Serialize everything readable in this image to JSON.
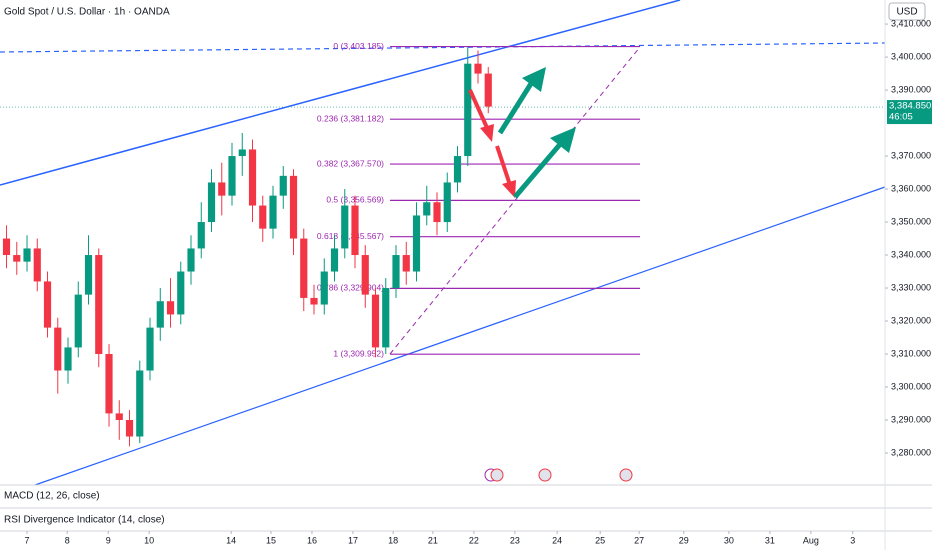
{
  "header": {
    "title": "Gold Spot / U.S. Dollar · 1h · OANDA",
    "currency": "USD"
  },
  "chart_data": {
    "type": "candlestick",
    "x": [
      -0.5,
      -0.25,
      0,
      0.25,
      0.5,
      0.75,
      1.0,
      1.25,
      1.5,
      1.75,
      2.0,
      2.25,
      2.5,
      2.75,
      3.0,
      3.25,
      3.5,
      3.75,
      4.0,
      4.25,
      4.5,
      4.75,
      5.0,
      5.25,
      5.5,
      5.75,
      6.0,
      6.25,
      6.5,
      6.75,
      7.0,
      7.25,
      7.5,
      7.75,
      8.0,
      8.25,
      8.5,
      8.75,
      9.0,
      9.25,
      9.5,
      9.75,
      10.0,
      10.25,
      10.5,
      10.75,
      11.0,
      11.25
    ],
    "open": [
      3345,
      3340,
      3338,
      3342,
      3332,
      3318,
      3305,
      3312,
      3328,
      3340,
      3310,
      3292,
      3290,
      3285,
      3305,
      3318,
      3326,
      3322,
      3335,
      3342,
      3350,
      3362,
      3358,
      3370,
      3372,
      3355,
      3348,
      3358,
      3364,
      3345,
      3327,
      3325,
      3335,
      3342,
      3355,
      3340,
      3328,
      3312,
      3330,
      3340,
      3335,
      3352,
      3356,
      3350,
      3362,
      3370,
      3398,
      3395
    ],
    "high": [
      3349,
      3344,
      3346,
      3345,
      3335,
      3321,
      3315,
      3332,
      3346,
      3342,
      3313,
      3296,
      3293,
      3308,
      3321,
      3330,
      3333,
      3338,
      3346,
      3356,
      3366,
      3368,
      3374,
      3377,
      3375,
      3358,
      3361,
      3367,
      3366,
      3348,
      3331,
      3339,
      3346,
      3360,
      3358,
      3343,
      3330,
      3333,
      3343,
      3344,
      3356,
      3361,
      3359,
      3365,
      3373,
      3403,
      3402,
      3397
    ],
    "low": [
      3336,
      3334,
      3335,
      3329,
      3315,
      3298,
      3301,
      3309,
      3325,
      3306,
      3288,
      3284,
      3282,
      3283,
      3302,
      3314,
      3318,
      3319,
      3331,
      3339,
      3347,
      3352,
      3355,
      3364,
      3350,
      3344,
      3345,
      3354,
      3340,
      3323,
      3322,
      3322,
      3332,
      3339,
      3336,
      3324,
      3309,
      3310,
      3327,
      3331,
      3332,
      3349,
      3346,
      3347,
      3359,
      3367,
      3392,
      3383
    ],
    "close": [
      3340,
      3338,
      3342,
      3332,
      3318,
      3305,
      3312,
      3328,
      3340,
      3310,
      3292,
      3290,
      3285,
      3305,
      3318,
      3326,
      3322,
      3335,
      3342,
      3350,
      3362,
      3358,
      3370,
      3372,
      3355,
      3348,
      3358,
      3364,
      3345,
      3327,
      3325,
      3335,
      3342,
      3355,
      3340,
      3328,
      3312,
      3330,
      3340,
      3335,
      3352,
      3356,
      3350,
      3362,
      3370,
      3398,
      3395,
      3385
    ],
    "up_color": "#089981",
    "down_color": "#f23645",
    "xlim": [
      -0.659,
      20.927
    ],
    "xticks": [
      {
        "value": 0,
        "label": "7"
      },
      {
        "value": 0.98,
        "label": "8"
      },
      {
        "value": 1.98,
        "label": "9"
      },
      {
        "value": 2.98,
        "label": "10"
      },
      {
        "value": 4.98,
        "label": "14"
      },
      {
        "value": 5.95,
        "label": "15"
      },
      {
        "value": 6.95,
        "label": "16"
      },
      {
        "value": 7.95,
        "label": "17"
      },
      {
        "value": 8.93,
        "label": "18"
      },
      {
        "value": 9.9,
        "label": "21"
      },
      {
        "value": 10.9,
        "label": "22"
      },
      {
        "value": 11.9,
        "label": "23"
      },
      {
        "value": 12.93,
        "label": "24"
      },
      {
        "value": 13.98,
        "label": "25"
      },
      {
        "value": 14.93,
        "label": "27"
      },
      {
        "value": 16.02,
        "label": "29"
      },
      {
        "value": 17.12,
        "label": "30"
      },
      {
        "value": 18.12,
        "label": "31"
      },
      {
        "value": 19.12,
        "label": "Aug"
      },
      {
        "value": 20.14,
        "label": "3"
      }
    ],
    "ylim": [
      3270.3,
      3417.3
    ],
    "yticks": [
      {
        "value": 3280,
        "label": "3,280.000"
      },
      {
        "value": 3290,
        "label": "3,290.000"
      },
      {
        "value": 3300,
        "label": "3,300.000"
      },
      {
        "value": 3310,
        "label": "3,310.000"
      },
      {
        "value": 3320,
        "label": "3,320.000"
      },
      {
        "value": 3330,
        "label": "3,330.000"
      },
      {
        "value": 3340,
        "label": "3,340.000"
      },
      {
        "value": 3350,
        "label": "3,350.000"
      },
      {
        "value": 3360,
        "label": "3,360.000"
      },
      {
        "value": 3370,
        "label": "3,370.000"
      },
      {
        "value": 3390,
        "label": "3,390.000"
      },
      {
        "value": 3400,
        "label": "3,400.000"
      },
      {
        "value": 3410,
        "label": "3,410.000"
      }
    ],
    "grid": false,
    "fib_color": "#9c27b0",
    "fib_levels": [
      {
        "label": "0 (3,403.185)",
        "price": 3403.185
      },
      {
        "label": "0.236 (3,381.182)",
        "price": 3381.182
      },
      {
        "label": "0.382 (3,367.570)",
        "price": 3367.57
      },
      {
        "label": "0.5 (3,356.569)",
        "price": 3356.569
      },
      {
        "label": "0.618 (3,345.567)",
        "price": 3345.567
      },
      {
        "label": "0.786 (3,329.904)",
        "price": 3329.904
      },
      {
        "label": "1 (3,309.952)",
        "price": 3309.952
      }
    ],
    "last_price": {
      "value": 3384.85,
      "label": "3,384.850"
    },
    "countdown": "46:05"
  },
  "panes": {
    "macd": "MACD (12, 26, close)",
    "rsi": "RSI Divergence Indicator (14, close)"
  }
}
